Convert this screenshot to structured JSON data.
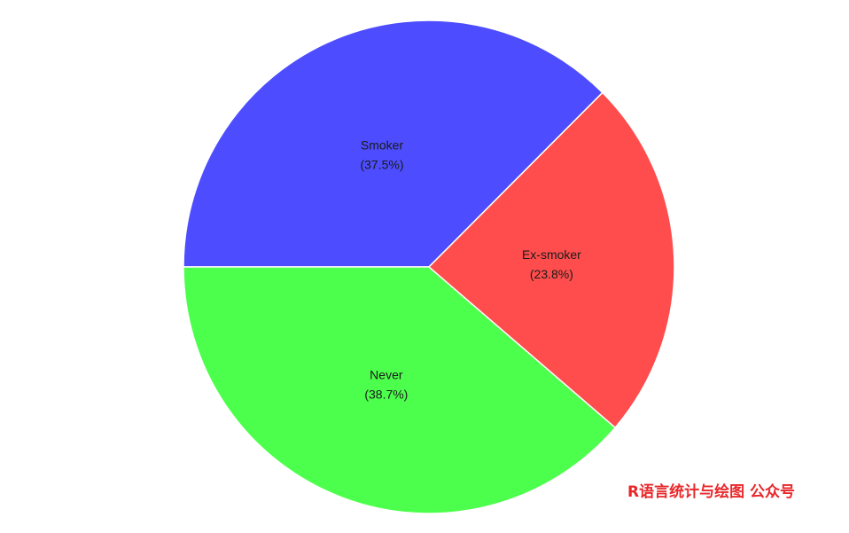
{
  "chart_data": {
    "type": "pie",
    "start_angle_deg": 180,
    "direction": "clockwise",
    "slices": [
      {
        "name": "Smoker",
        "percent_label": "(37.5%)",
        "value": 37.5,
        "color": "#4d4dff"
      },
      {
        "name": "Ex-smoker",
        "percent_label": "(23.8%)",
        "value": 23.8,
        "color": "#ff4d4d"
      },
      {
        "name": "Never",
        "percent_label": "(38.7%)",
        "value": 38.7,
        "color": "#4dff4d"
      }
    ]
  },
  "watermark": {
    "text": "R语言统计与绘图 公众号",
    "color": "#e8282b"
  }
}
